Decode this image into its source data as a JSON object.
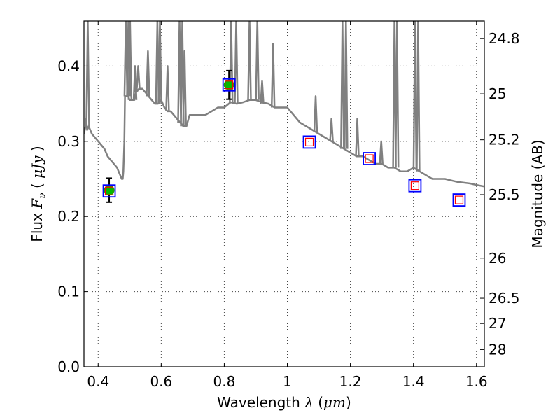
{
  "chart_data": {
    "type": "scatter",
    "xlabel_text": "Wavelength",
    "xlabel_symbol": "λ",
    "xlabel_unit_open": "(",
    "xlabel_unit": "μm",
    "xlabel_unit_close": ")",
    "ylabel_text": "Flux",
    "ylabel_symbol": "F",
    "ylabel_subscript": "ν",
    "ylabel_unit_open": "(",
    "ylabel_unit": "μJy",
    "ylabel_unit_close": ")",
    "y2label": "Magnitude (AB)",
    "xlim": [
      0.355,
      1.625
    ],
    "ylim": [
      0.0,
      0.46
    ],
    "grid": true,
    "x_ticks": [
      0.4,
      0.6,
      0.8,
      1.0,
      1.2,
      1.4,
      1.6
    ],
    "x_tick_labels": [
      "0.4",
      "0.6",
      "0.8",
      "1",
      "1.2",
      "1.4",
      "1.6"
    ],
    "y_ticks": [
      0.0,
      0.1,
      0.2,
      0.3,
      0.4
    ],
    "y_tick_labels": [
      "0.0",
      "0.1",
      "0.2",
      "0.3",
      "0.4"
    ],
    "mag_ticks": [
      24.8,
      25.0,
      25.2,
      25.5,
      26.0,
      26.5,
      27.0,
      28.0
    ],
    "mag_tick_labels": [
      "24.8",
      "25",
      "25.2",
      "25.5",
      "26",
      "26.5",
      "27",
      "28"
    ],
    "colors": {
      "sed": "#808080",
      "detection_fill": "#00bb00",
      "box_outer": "#0000ff",
      "box_inner": "#ff0000",
      "errorbar": "#000000",
      "grid": "#444444"
    },
    "sed_model": {
      "x": [
        0.355,
        0.36,
        0.362,
        0.365,
        0.37,
        0.375,
        0.38,
        0.39,
        0.4,
        0.41,
        0.42,
        0.43,
        0.44,
        0.45,
        0.46,
        0.465,
        0.47,
        0.475,
        0.478,
        0.48,
        0.483,
        0.485,
        0.488,
        0.49,
        0.495,
        0.5,
        0.505,
        0.51,
        0.515,
        0.52,
        0.53,
        0.54,
        0.55,
        0.56,
        0.57,
        0.58,
        0.59,
        0.6,
        0.61,
        0.62,
        0.63,
        0.64,
        0.65,
        0.66,
        0.67,
        0.68,
        0.69,
        0.7,
        0.72,
        0.74,
        0.76,
        0.78,
        0.8,
        0.82,
        0.84,
        0.86,
        0.88,
        0.9,
        0.92,
        0.94,
        0.96,
        0.98,
        1.0,
        1.02,
        1.04,
        1.06,
        1.08,
        1.1,
        1.12,
        1.14,
        1.16,
        1.18,
        1.2,
        1.22,
        1.24,
        1.26,
        1.28,
        1.3,
        1.32,
        1.34,
        1.36,
        1.38,
        1.4,
        1.42,
        1.44,
        1.46,
        1.48,
        1.5,
        1.52,
        1.54,
        1.56,
        1.58,
        1.6,
        1.625
      ],
      "y": [
        0.31,
        0.32,
        0.33,
        0.315,
        0.32,
        0.315,
        0.31,
        0.305,
        0.3,
        0.295,
        0.29,
        0.28,
        0.275,
        0.27,
        0.265,
        0.26,
        0.255,
        0.25,
        0.25,
        0.26,
        0.3,
        0.36,
        0.36,
        0.36,
        0.36,
        0.355,
        0.355,
        0.355,
        0.355,
        0.365,
        0.37,
        0.37,
        0.365,
        0.36,
        0.355,
        0.35,
        0.35,
        0.355,
        0.345,
        0.34,
        0.34,
        0.335,
        0.33,
        0.325,
        0.32,
        0.32,
        0.335,
        0.335,
        0.335,
        0.335,
        0.34,
        0.345,
        0.345,
        0.352,
        0.35,
        0.352,
        0.355,
        0.355,
        0.352,
        0.35,
        0.345,
        0.345,
        0.345,
        0.335,
        0.325,
        0.32,
        0.315,
        0.31,
        0.305,
        0.3,
        0.295,
        0.29,
        0.285,
        0.28,
        0.28,
        0.275,
        0.27,
        0.27,
        0.265,
        0.265,
        0.26,
        0.26,
        0.265,
        0.26,
        0.255,
        0.25,
        0.25,
        0.25,
        0.248,
        0.246,
        0.245,
        0.244,
        0.242,
        0.24
      ]
    },
    "sed_lines": [
      {
        "x": 0.367,
        "top": 0.46,
        "base": 0.32
      },
      {
        "x": 0.488,
        "top": 0.46,
        "base": 0.36
      },
      {
        "x": 0.496,
        "top": 0.46,
        "base": 0.36
      },
      {
        "x": 0.501,
        "top": 0.46,
        "base": 0.355
      },
      {
        "x": 0.517,
        "top": 0.4,
        "base": 0.355
      },
      {
        "x": 0.52,
        "top": 0.375,
        "base": 0.365
      },
      {
        "x": 0.527,
        "top": 0.4,
        "base": 0.37
      },
      {
        "x": 0.558,
        "top": 0.42,
        "base": 0.36
      },
      {
        "x": 0.588,
        "top": 0.46,
        "base": 0.35
      },
      {
        "x": 0.596,
        "top": 0.46,
        "base": 0.35
      },
      {
        "x": 0.62,
        "top": 0.4,
        "base": 0.34
      },
      {
        "x": 0.658,
        "top": 0.46,
        "base": 0.325
      },
      {
        "x": 0.667,
        "top": 0.46,
        "base": 0.32
      },
      {
        "x": 0.674,
        "top": 0.42,
        "base": 0.32
      },
      {
        "x": 0.822,
        "top": 0.46,
        "base": 0.35
      },
      {
        "x": 0.838,
        "top": 0.46,
        "base": 0.35
      },
      {
        "x": 0.88,
        "top": 0.46,
        "base": 0.355
      },
      {
        "x": 0.905,
        "top": 0.46,
        "base": 0.355
      },
      {
        "x": 0.92,
        "top": 0.38,
        "base": 0.35
      },
      {
        "x": 0.955,
        "top": 0.43,
        "base": 0.345
      },
      {
        "x": 1.09,
        "top": 0.36,
        "base": 0.312
      },
      {
        "x": 1.14,
        "top": 0.33,
        "base": 0.3
      },
      {
        "x": 1.175,
        "top": 0.46,
        "base": 0.29
      },
      {
        "x": 1.186,
        "top": 0.46,
        "base": 0.29
      },
      {
        "x": 1.222,
        "top": 0.33,
        "base": 0.28
      },
      {
        "x": 1.298,
        "top": 0.3,
        "base": 0.27
      },
      {
        "x": 1.34,
        "top": 0.46,
        "base": 0.265
      },
      {
        "x": 1.348,
        "top": 0.46,
        "base": 0.265
      },
      {
        "x": 1.405,
        "top": 0.46,
        "base": 0.262
      },
      {
        "x": 1.415,
        "top": 0.46,
        "base": 0.26
      }
    ],
    "detections": [
      {
        "x": 0.435,
        "y": 0.235,
        "err": 0.016
      },
      {
        "x": 0.815,
        "y": 0.375,
        "err": 0.019
      }
    ],
    "model_points": [
      {
        "x": 0.435,
        "y": 0.234
      },
      {
        "x": 0.815,
        "y": 0.375
      },
      {
        "x": 1.07,
        "y": 0.299
      },
      {
        "x": 1.26,
        "y": 0.277
      },
      {
        "x": 1.405,
        "y": 0.241
      },
      {
        "x": 1.545,
        "y": 0.222
      }
    ],
    "upper_limits": [
      {
        "x": 1.07,
        "y": 0.299
      },
      {
        "x": 1.26,
        "y": 0.277
      },
      {
        "x": 1.405,
        "y": 0.241
      },
      {
        "x": 1.545,
        "y": 0.222
      }
    ]
  }
}
